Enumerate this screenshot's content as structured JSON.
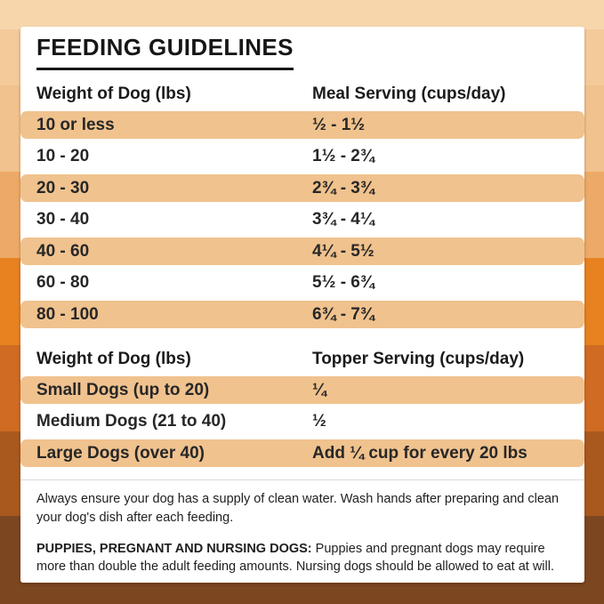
{
  "page": {
    "title": "FEEDING GUIDELINES"
  },
  "colors": {
    "row_highlight": "#f0c28e",
    "card_background": "#ffffff",
    "text": "#1b1b1b",
    "background_bands": [
      "#f7d6ac",
      "#f4ca9a",
      "#f1c28d",
      "#eda967",
      "#e88120",
      "#cf6b22",
      "#a9591e",
      "#7c4621"
    ]
  },
  "meal_table": {
    "col1_header": "Weight of Dog (lbs)",
    "col2_header": "Meal Serving (cups/day)",
    "rows": [
      {
        "weight": "10 or less",
        "serving": "½ - 1½",
        "highlight": true
      },
      {
        "weight": "10 - 20",
        "serving": "1½ - 2¾",
        "highlight": false
      },
      {
        "weight": "20 - 30",
        "serving": "2¾ - 3¾",
        "highlight": true
      },
      {
        "weight": "30 - 40",
        "serving": "3¾ - 4¼",
        "highlight": false
      },
      {
        "weight": "40 - 60",
        "serving": "4¼ - 5½",
        "highlight": true
      },
      {
        "weight": "60 - 80",
        "serving": "5½ - 6¾",
        "highlight": false
      },
      {
        "weight": "80 - 100",
        "serving": "6¾ - 7¾",
        "highlight": true
      }
    ]
  },
  "topper_table": {
    "col1_header": "Weight of Dog (lbs)",
    "col2_header": "Topper Serving (cups/day)",
    "rows": [
      {
        "weight": "Small Dogs (up to 20)",
        "serving": "¼",
        "highlight": true
      },
      {
        "weight": "Medium Dogs (21 to 40)",
        "serving": "½",
        "highlight": false
      },
      {
        "weight": "Large Dogs (over 40)",
        "serving": "Add ¼ cup for every 20 lbs",
        "highlight": true
      }
    ]
  },
  "notes": {
    "water": "Always ensure your dog has a supply of clean water. Wash hands after preparing and clean your dog's dish after each feeding.",
    "special_lead": "PUPPIES, PREGNANT AND NURSING DOGS:",
    "special_body": " Puppies and pregnant dogs may require more than double the adult feeding amounts. Nursing dogs should be allowed to eat at will."
  }
}
